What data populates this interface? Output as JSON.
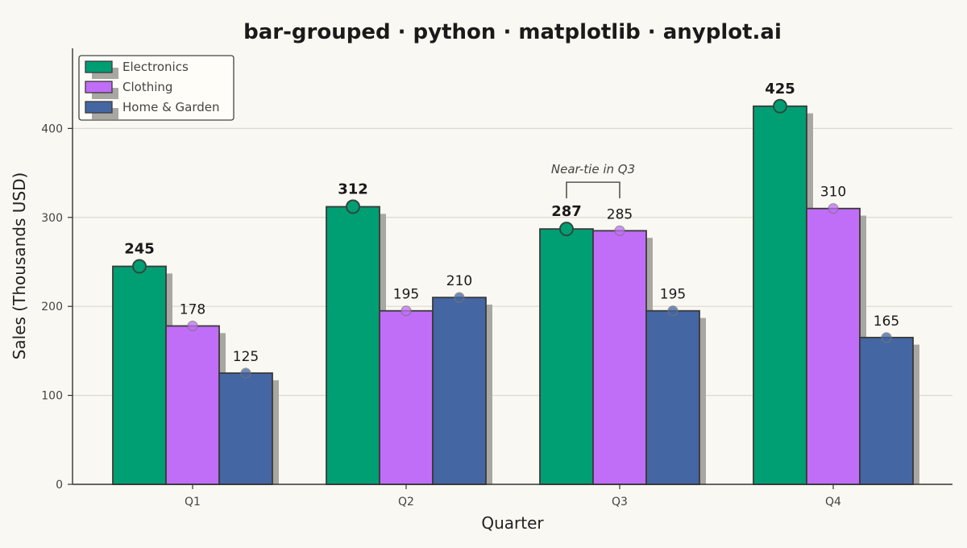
{
  "chart_data": {
    "type": "bar",
    "title": "bar-grouped · python · matplotlib · anyplot.ai",
    "xlabel": "Quarter",
    "ylabel": "Sales (Thousands USD)",
    "ylim": [
      0,
      490
    ],
    "yticks": [
      0,
      100,
      200,
      300,
      400
    ],
    "grid": true,
    "legend_position": "top-left",
    "categories": [
      "Q1",
      "Q2",
      "Q3",
      "Q4"
    ],
    "series": [
      {
        "name": "Electronics",
        "color": "#009e73",
        "values": [
          245,
          312,
          287,
          425
        ],
        "labels_bold": true
      },
      {
        "name": "Clothing",
        "color": "#c06ef7",
        "values": [
          178,
          195,
          285,
          310
        ],
        "labels_bold": false
      },
      {
        "name": "Home & Garden",
        "color": "#4466a3",
        "values": [
          125,
          210,
          195,
          165
        ],
        "labels_bold": false
      }
    ],
    "annotation": {
      "text": "Near-tie in Q3",
      "category": "Q3",
      "series": [
        "Electronics",
        "Clothing"
      ]
    }
  }
}
